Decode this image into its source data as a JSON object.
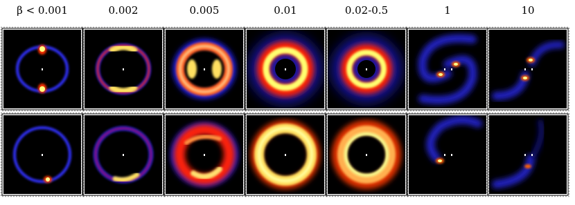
{
  "columns": [
    "β < 0.001",
    "0.002",
    "0.005",
    "0.01",
    "0.02-0.5",
    "1",
    "10"
  ]
}
